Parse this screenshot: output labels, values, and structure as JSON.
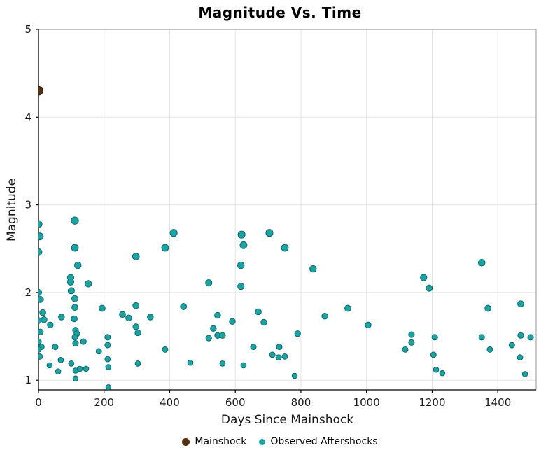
{
  "colors": {
    "mainshock_fill": "#5a2f0e",
    "mainshock_edge": "#30180a",
    "aftershock_fill": "#1ba3a4",
    "aftershock_edge": "#0e6a6b",
    "grid": "#e4e4e4",
    "spine_dark": "#000000",
    "spine_light": "#b3b3b3",
    "text": "#1a1a1a"
  },
  "legend": {
    "items": [
      {
        "label": "Mainshock",
        "color": "#5a2f0e"
      },
      {
        "label": "Observed Aftershocks",
        "color": "#1ba3a4"
      }
    ]
  },
  "chart_data": {
    "type": "scatter",
    "title": "Magnitude Vs. Time",
    "xlabel": "Days Since Mainshock",
    "ylabel": "Magnitude",
    "xlim": [
      0,
      1517
    ],
    "ylim": [
      0.89,
      5.0
    ],
    "x_ticks": [
      0,
      200,
      400,
      600,
      800,
      1000,
      1200,
      1400
    ],
    "y_ticks": [
      1,
      2,
      3,
      4,
      5
    ],
    "grid": true,
    "legend_position": "bottom-center",
    "marker_size_rule": "radius_px = 2.9 + 0.8 * magnitude",
    "series": [
      {
        "name": "Mainshock",
        "color": "#5a2f0e",
        "points": [
          [
            0,
            4.3
          ]
        ]
      },
      {
        "name": "Observed Aftershocks",
        "color": "#1ba3a4",
        "points": [
          [
            0,
            2.78
          ],
          [
            4,
            2.64
          ],
          [
            0,
            2.46
          ],
          [
            0,
            2.0
          ],
          [
            6,
            1.92
          ],
          [
            13,
            1.77
          ],
          [
            0,
            1.68
          ],
          [
            17,
            1.69
          ],
          [
            36,
            1.63
          ],
          [
            6,
            1.55
          ],
          [
            0,
            1.44
          ],
          [
            9,
            1.38
          ],
          [
            0,
            1.35
          ],
          [
            4,
            1.27
          ],
          [
            34,
            1.17
          ],
          [
            51,
            1.38
          ],
          [
            68,
            1.23
          ],
          [
            60,
            1.1
          ],
          [
            70,
            1.72
          ],
          [
            111,
            2.82
          ],
          [
            111,
            2.51
          ],
          [
            120,
            2.31
          ],
          [
            98,
            2.17
          ],
          [
            98,
            2.12
          ],
          [
            152,
            2.1
          ],
          [
            100,
            2.02
          ],
          [
            111,
            1.93
          ],
          [
            111,
            1.83
          ],
          [
            109,
            1.7
          ],
          [
            113,
            1.57
          ],
          [
            117,
            1.53
          ],
          [
            111,
            1.49
          ],
          [
            113,
            1.42
          ],
          [
            100,
            1.19
          ],
          [
            113,
            1.11
          ],
          [
            113,
            1.02
          ],
          [
            137,
            1.44
          ],
          [
            126,
            1.13
          ],
          [
            145,
            1.13
          ],
          [
            194,
            1.82
          ],
          [
            184,
            1.33
          ],
          [
            211,
            1.49
          ],
          [
            211,
            1.4
          ],
          [
            211,
            1.24
          ],
          [
            213,
            1.15
          ],
          [
            213,
            0.92
          ],
          [
            256,
            1.75
          ],
          [
            275,
            1.71
          ],
          [
            297,
            2.41
          ],
          [
            297,
            1.85
          ],
          [
            297,
            1.61
          ],
          [
            303,
            1.54
          ],
          [
            303,
            1.19
          ],
          [
            341,
            1.72
          ],
          [
            386,
            2.51
          ],
          [
            386,
            1.35
          ],
          [
            412,
            2.68
          ],
          [
            442,
            1.84
          ],
          [
            463,
            1.2
          ],
          [
            519,
            2.11
          ],
          [
            519,
            1.48
          ],
          [
            533,
            1.59
          ],
          [
            546,
            1.74
          ],
          [
            546,
            1.51
          ],
          [
            561,
            1.51
          ],
          [
            561,
            1.19
          ],
          [
            591,
            1.67
          ],
          [
            617,
            2.31
          ],
          [
            619,
            2.66
          ],
          [
            625,
            2.54
          ],
          [
            617,
            2.07
          ],
          [
            625,
            1.17
          ],
          [
            655,
            1.38
          ],
          [
            670,
            1.78
          ],
          [
            687,
            1.66
          ],
          [
            704,
            2.68
          ],
          [
            713,
            1.29
          ],
          [
            732,
            1.26
          ],
          [
            734,
            1.38
          ],
          [
            751,
            2.51
          ],
          [
            751,
            1.27
          ],
          [
            781,
            1.05
          ],
          [
            790,
            1.53
          ],
          [
            837,
            2.27
          ],
          [
            873,
            1.73
          ],
          [
            943,
            1.82
          ],
          [
            1005,
            1.63
          ],
          [
            1118,
            1.35
          ],
          [
            1137,
            1.52
          ],
          [
            1137,
            1.43
          ],
          [
            1174,
            2.17
          ],
          [
            1191,
            2.05
          ],
          [
            1208,
            1.49
          ],
          [
            1204,
            1.29
          ],
          [
            1212,
            1.12
          ],
          [
            1231,
            1.08
          ],
          [
            1351,
            2.34
          ],
          [
            1351,
            1.49
          ],
          [
            1370,
            1.82
          ],
          [
            1376,
            1.35
          ],
          [
            1443,
            1.4
          ],
          [
            1470,
            1.87
          ],
          [
            1470,
            1.51
          ],
          [
            1468,
            1.26
          ],
          [
            1483,
            1.07
          ],
          [
            1500,
            1.49
          ]
        ]
      }
    ]
  }
}
